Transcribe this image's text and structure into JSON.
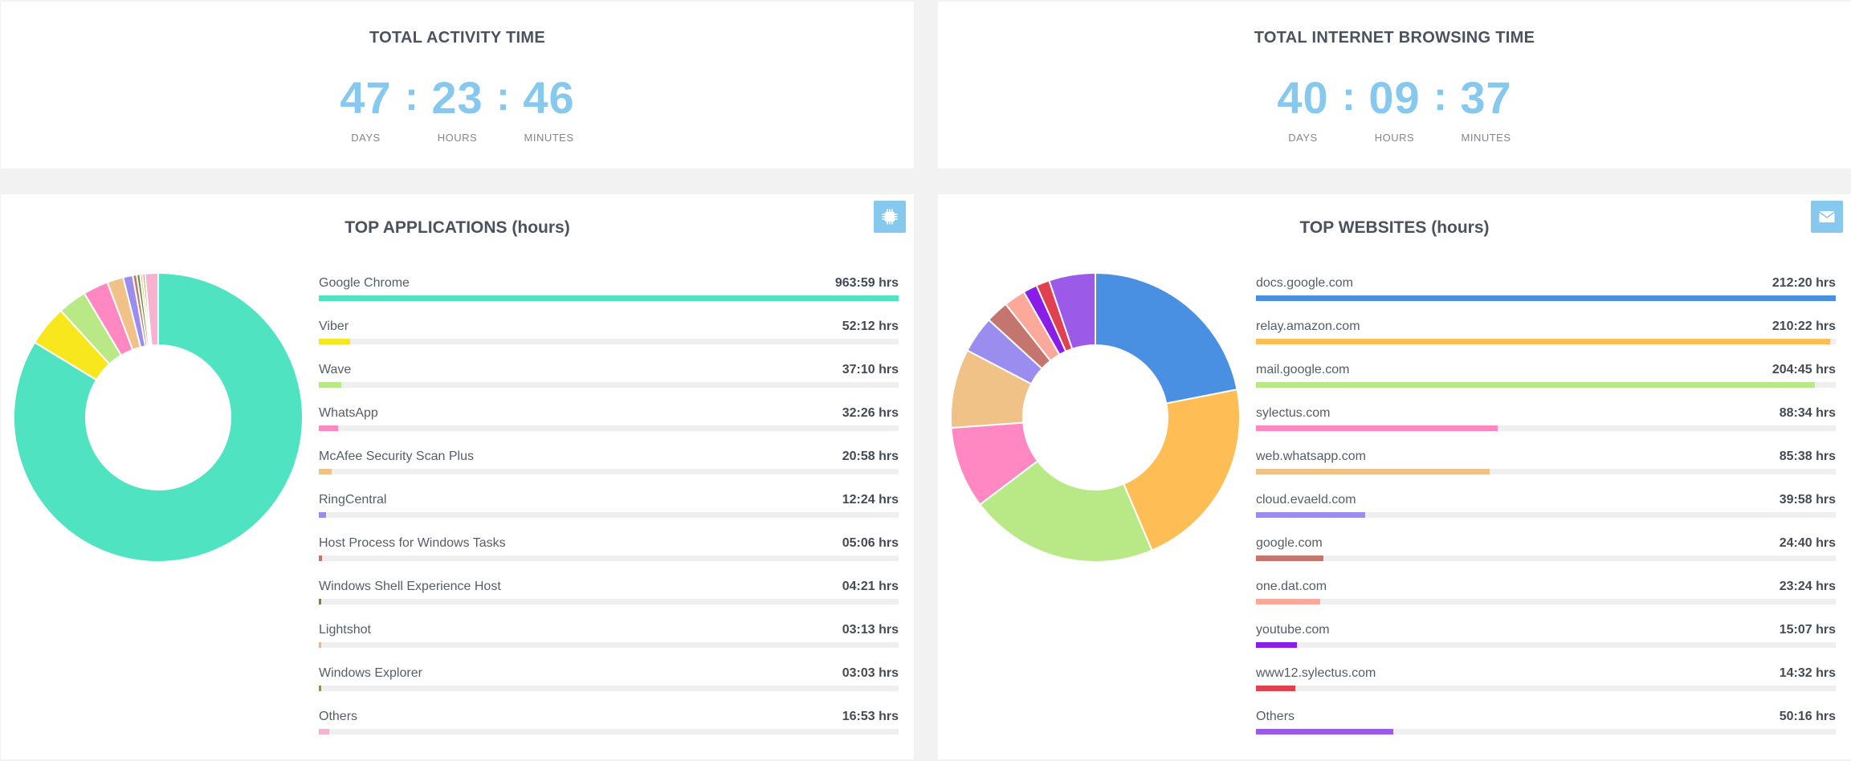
{
  "activity": {
    "title": "TOTAL ACTIVITY TIME",
    "days": "47",
    "hours": "23",
    "minutes": "46",
    "separator": ":",
    "days_label": "DAYS",
    "hours_label": "HOURS",
    "minutes_label": "MINUTES"
  },
  "browsing": {
    "title": "TOTAL INTERNET BROWSING TIME",
    "days": "40",
    "hours": "09",
    "minutes": "37",
    "separator": ":",
    "days_label": "DAYS",
    "hours_label": "HOURS",
    "minutes_label": "MINUTES"
  },
  "apps": {
    "title": "TOP APPLICATIONS (hours)",
    "icon": "chip-icon",
    "items": [
      {
        "name": "Google Chrome",
        "value": "963:59 hrs",
        "hours": 963.98,
        "color": "#50e3c2"
      },
      {
        "name": "Viber",
        "value": "52:12 hrs",
        "hours": 52.2,
        "color": "#f8e71c"
      },
      {
        "name": "Wave",
        "value": "37:10 hrs",
        "hours": 37.17,
        "color": "#b8e986"
      },
      {
        "name": "WhatsApp",
        "value": "32:26 hrs",
        "hours": 32.43,
        "color": "#ff87c2"
      },
      {
        "name": "McAfee Security Scan Plus",
        "value": "20:58 hrs",
        "hours": 20.97,
        "color": "#f0c287"
      },
      {
        "name": "RingCentral",
        "value": "12:24 hrs",
        "hours": 12.4,
        "color": "#9b8cf0"
      },
      {
        "name": "Host Process for Windows Tasks",
        "value": "05:06 hrs",
        "hours": 5.1,
        "color": "#c4766e"
      },
      {
        "name": "Windows Shell Experience Host",
        "value": "04:21 hrs",
        "hours": 4.35,
        "color": "#6a8a3a"
      },
      {
        "name": "Lightshot",
        "value": "03:13 hrs",
        "hours": 3.22,
        "color": "#f4b183"
      },
      {
        "name": "Windows Explorer",
        "value": "03:03 hrs",
        "hours": 3.05,
        "color": "#8a9a2a"
      },
      {
        "name": "Others",
        "value": "16:53 hrs",
        "hours": 16.88,
        "color": "#f7b2cf"
      }
    ]
  },
  "sites": {
    "title": "TOP WEBSITES (hours)",
    "icon": "envelope-icon",
    "items": [
      {
        "name": "docs.google.com",
        "value": "212:20 hrs",
        "hours": 212.33,
        "color": "#4a90e2"
      },
      {
        "name": "relay.amazon.com",
        "value": "210:22 hrs",
        "hours": 210.37,
        "color": "#ffbe55"
      },
      {
        "name": "mail.google.com",
        "value": "204:45 hrs",
        "hours": 204.75,
        "color": "#b8e986"
      },
      {
        "name": "sylectus.com",
        "value": "88:34 hrs",
        "hours": 88.57,
        "color": "#ff87c2"
      },
      {
        "name": "web.whatsapp.com",
        "value": "85:38 hrs",
        "hours": 85.63,
        "color": "#f0c287"
      },
      {
        "name": "cloud.evaeld.com",
        "value": "39:58 hrs",
        "hours": 39.97,
        "color": "#9b8cf0"
      },
      {
        "name": "google.com",
        "value": "24:40 hrs",
        "hours": 24.67,
        "color": "#c4766e"
      },
      {
        "name": "one.dat.com",
        "value": "23:24 hrs",
        "hours": 23.4,
        "color": "#fca89a"
      },
      {
        "name": "youtube.com",
        "value": "15:07 hrs",
        "hours": 15.12,
        "color": "#8b1de8"
      },
      {
        "name": "www12.sylectus.com",
        "value": "14:32 hrs",
        "hours": 14.53,
        "color": "#e0404f"
      },
      {
        "name": "Others",
        "value": "50:16 hrs",
        "hours": 50.27,
        "color": "#9c5ae8"
      }
    ]
  }
}
